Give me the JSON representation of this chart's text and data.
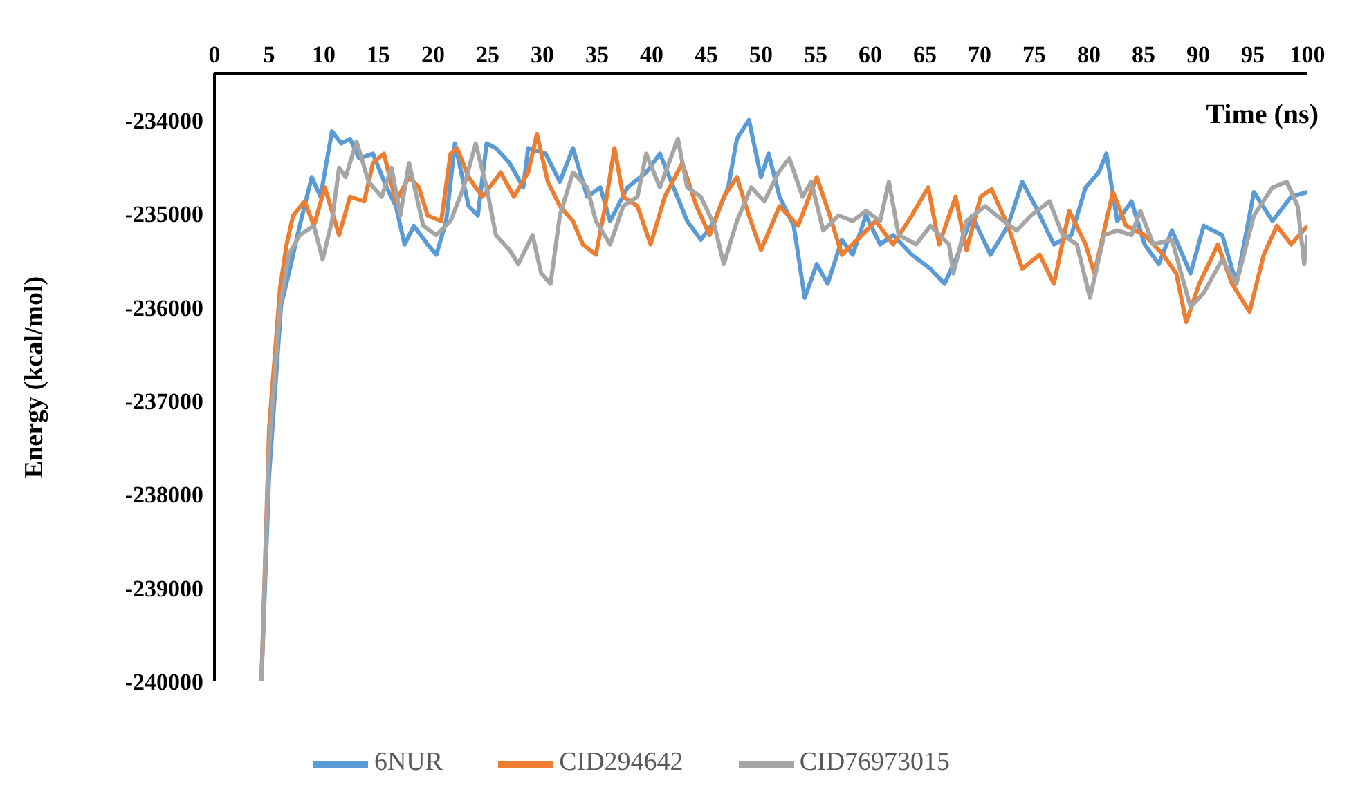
{
  "chart_data": {
    "type": "line",
    "xlabel": "Time (ns)",
    "ylabel": "Energy (kcal/mol)",
    "xlim": [
      0,
      100
    ],
    "xticks": [
      0,
      5,
      10,
      15,
      20,
      25,
      30,
      35,
      40,
      45,
      50,
      55,
      60,
      65,
      70,
      75,
      80,
      85,
      90,
      95,
      100
    ],
    "ylim": [
      -240000,
      -233500
    ],
    "yticks": [
      -240000,
      -239000,
      -238000,
      -237000,
      -236000,
      -235000,
      -234000
    ],
    "grid": false,
    "legend": "bottom",
    "marker": "none",
    "line_style": "solid",
    "series": [
      {
        "name": "6NUR",
        "color": "#5b9bd5",
        "x": [
          4.3,
          5,
          6.1,
          7,
          7.8,
          8.9,
          9.7,
          10.75,
          11.6,
          12.4,
          13.25,
          14.5,
          15.75,
          16.6,
          17.4,
          18.25,
          19.5,
          20.3,
          21.2,
          22,
          23.25,
          24.1,
          24.9,
          25.75,
          27,
          28.25,
          28.7,
          30.3,
          31.6,
          32.8,
          34.1,
          35.3,
          36.2,
          37.8,
          39.5,
          40.75,
          42,
          43.25,
          44.5,
          45.75,
          47,
          47.8,
          48.9,
          50,
          50.7,
          51.7,
          53,
          54,
          55.1,
          56.1,
          57.4,
          58.4,
          59.6,
          60.9,
          62.1,
          63.8,
          65.5,
          66.8,
          68,
          69.3,
          71,
          72.6,
          73.9,
          75.1,
          76.8,
          78.4,
          79.7,
          80.9,
          81.6,
          82.6,
          83.9,
          85.1,
          86.4,
          87.6,
          89.3,
          90.5,
          92.2,
          93.5,
          95.1,
          96.8,
          98.5,
          100
        ],
        "values": [
          -240000,
          -237800,
          -235980,
          -235540,
          -235130,
          -234610,
          -234820,
          -234120,
          -234250,
          -234200,
          -234410,
          -234360,
          -234720,
          -234920,
          -235330,
          -235130,
          -235330,
          -235440,
          -235080,
          -234250,
          -234920,
          -235020,
          -234250,
          -234300,
          -234460,
          -234720,
          -234300,
          -234360,
          -234660,
          -234300,
          -234820,
          -234720,
          -235080,
          -234720,
          -234560,
          -234360,
          -234720,
          -235080,
          -235280,
          -235080,
          -234720,
          -234200,
          -234000,
          -234610,
          -234360,
          -234820,
          -235130,
          -235900,
          -235540,
          -235750,
          -235280,
          -235440,
          -235020,
          -235330,
          -235230,
          -235440,
          -235590,
          -235750,
          -235440,
          -235020,
          -235440,
          -235130,
          -234660,
          -234920,
          -235330,
          -235230,
          -234720,
          -234560,
          -234360,
          -235080,
          -234870,
          -235330,
          -235540,
          -235180,
          -235640,
          -235130,
          -235230,
          -235750,
          -234770,
          -235080,
          -234820,
          -234770
        ]
      },
      {
        "name": "CID294642",
        "color": "#ed7d31",
        "x": [
          4.3,
          5,
          6,
          6.6,
          7.2,
          8.25,
          9.1,
          10.1,
          11.4,
          12.4,
          13.7,
          14.5,
          15.5,
          16.6,
          17.8,
          18.7,
          19.5,
          20.75,
          21.6,
          22.2,
          23.25,
          24.5,
          26.2,
          27.4,
          28.7,
          29.5,
          30.5,
          31.6,
          32.8,
          33.7,
          34.9,
          35.75,
          36.6,
          37.4,
          38.7,
          39.9,
          41.2,
          42.8,
          44.1,
          45.3,
          46.6,
          47.8,
          48.9,
          50,
          51.7,
          53.4,
          55.1,
          56.3,
          57.4,
          58.8,
          60.5,
          62.1,
          63.8,
          65.3,
          66.3,
          67.8,
          68.8,
          70.1,
          71.1,
          72.6,
          73.9,
          75.5,
          76.8,
          78.2,
          79.7,
          80.5,
          82.2,
          83.4,
          85.1,
          86.8,
          88,
          88.9,
          90.1,
          91.8,
          93.1,
          94.7,
          96,
          97.2,
          98.5,
          100
        ],
        "values": [
          -240000,
          -237300,
          -235800,
          -235330,
          -235020,
          -234870,
          -235130,
          -234720,
          -235230,
          -234820,
          -234870,
          -234460,
          -234360,
          -234870,
          -234610,
          -234720,
          -235020,
          -235080,
          -234360,
          -234300,
          -234610,
          -234820,
          -234560,
          -234820,
          -234560,
          -234150,
          -234660,
          -234920,
          -235080,
          -235330,
          -235440,
          -234920,
          -234300,
          -234820,
          -234920,
          -235330,
          -234820,
          -234460,
          -234920,
          -235230,
          -234820,
          -234610,
          -235020,
          -235390,
          -234920,
          -235130,
          -234610,
          -235020,
          -235440,
          -235280,
          -235080,
          -235330,
          -235020,
          -234720,
          -235330,
          -234820,
          -235390,
          -234820,
          -234740,
          -235130,
          -235590,
          -235440,
          -235750,
          -234970,
          -235330,
          -235640,
          -234770,
          -235130,
          -235230,
          -235440,
          -235640,
          -236160,
          -235750,
          -235330,
          -235750,
          -236050,
          -235440,
          -235130,
          -235330,
          -235130
        ]
      },
      {
        "name": "CID76973015",
        "color": "#a5a5a5",
        "x": [
          4.3,
          5,
          6,
          6.8,
          7.8,
          9.1,
          9.9,
          10.75,
          11.4,
          12,
          13,
          14.1,
          15.3,
          16.2,
          17,
          17.8,
          19.1,
          20.3,
          21.6,
          22.8,
          23.9,
          24.9,
          25.75,
          27,
          27.8,
          29.1,
          29.9,
          30.75,
          31.6,
          32.8,
          34.1,
          34.9,
          36.2,
          37.4,
          38.7,
          39.5,
          40.75,
          42.4,
          43.25,
          44.5,
          45.75,
          46.6,
          47.8,
          49.1,
          50.3,
          51.6,
          52.6,
          53.8,
          54.6,
          55.7,
          57.1,
          58.4,
          59.6,
          60.9,
          61.7,
          62.6,
          64.2,
          65.5,
          67.2,
          67.6,
          68.8,
          70.5,
          72.2,
          73.4,
          74.7,
          76.4,
          77.6,
          78.9,
          80.1,
          81.4,
          82.6,
          83.9,
          84.7,
          85.9,
          87.6,
          89.3,
          90.5,
          92.2,
          93.5,
          95.1,
          96.8,
          98.1,
          99.1,
          99.7,
          100
        ],
        "values": [
          -240000,
          -237500,
          -236000,
          -235440,
          -235230,
          -235130,
          -235490,
          -235080,
          -234510,
          -234610,
          -234230,
          -234660,
          -234820,
          -234510,
          -235020,
          -234460,
          -235130,
          -235230,
          -235080,
          -234720,
          -234250,
          -234720,
          -235230,
          -235390,
          -235540,
          -235230,
          -235640,
          -235750,
          -235020,
          -234560,
          -234720,
          -235080,
          -235330,
          -234920,
          -234820,
          -234360,
          -234720,
          -234200,
          -234720,
          -234820,
          -235130,
          -235540,
          -235080,
          -234720,
          -234870,
          -234560,
          -234410,
          -234820,
          -234660,
          -235180,
          -235020,
          -235080,
          -234970,
          -235080,
          -234660,
          -235230,
          -235330,
          -235130,
          -235330,
          -235640,
          -235080,
          -234920,
          -235080,
          -235180,
          -235020,
          -234870,
          -235230,
          -235330,
          -235900,
          -235230,
          -235180,
          -235230,
          -234970,
          -235330,
          -235280,
          -236000,
          -235850,
          -235490,
          -235750,
          -235020,
          -234720,
          -234660,
          -234920,
          -235540,
          -235230
        ]
      }
    ]
  }
}
